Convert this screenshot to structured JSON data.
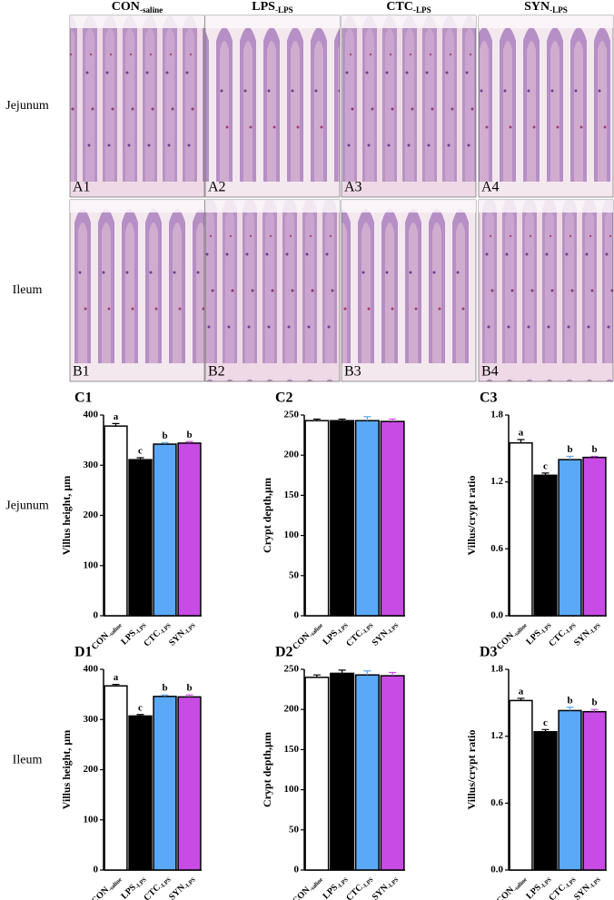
{
  "column_headers": [
    {
      "main": "CON",
      "sub": "-saline"
    },
    {
      "main": "LPS",
      "sub": "-LPS"
    },
    {
      "main": "CTC",
      "sub": "-LPS"
    },
    {
      "main": "SYN",
      "sub": "-LPS"
    }
  ],
  "row_labels": [
    "Jejunum",
    "Ileum"
  ],
  "panels": [
    [
      "A1",
      "A2",
      "A3",
      "A4"
    ],
    [
      "B1",
      "B2",
      "B3",
      "B4"
    ]
  ],
  "chart_row_labels": [
    "Jejunum",
    "Ileum"
  ],
  "chart_data": [
    {
      "type": "bar",
      "panel": "C1",
      "ylabel": "Villus height, µm",
      "categories": [
        "CON",
        "LPS",
        "CTC",
        "SYN"
      ],
      "category_subscripts": [
        "-saline",
        "-LPS",
        "-LPS",
        "-LPS"
      ],
      "values": [
        378,
        311,
        342,
        344
      ],
      "errors": [
        5,
        4,
        3,
        3
      ],
      "significance_letters": [
        "a",
        "c",
        "b",
        "b"
      ],
      "colors": [
        "#ffffff",
        "#000000",
        "#5aa9f8",
        "#c94be6"
      ],
      "edgecolor": "#000000",
      "ylim": [
        0,
        400
      ],
      "yticks": [
        0,
        100,
        200,
        300,
        400
      ]
    },
    {
      "type": "bar",
      "panel": "C2",
      "ylabel": "Crypt depth,µm",
      "categories": [
        "CON",
        "LPS",
        "CTC",
        "SYN"
      ],
      "category_subscripts": [
        "-saline",
        "-LPS",
        "-LPS",
        "-LPS"
      ],
      "values": [
        243,
        243,
        243,
        242
      ],
      "errors": [
        2,
        2,
        5,
        3
      ],
      "colors": [
        "#ffffff",
        "#000000",
        "#5aa9f8",
        "#c94be6"
      ],
      "edgecolor": "#000000",
      "ylim": [
        0,
        250
      ],
      "yticks": [
        0,
        50,
        100,
        150,
        200,
        250
      ]
    },
    {
      "type": "bar",
      "panel": "C3",
      "ylabel": "Villus/crypt ratio",
      "categories": [
        "CON",
        "LPS",
        "CTC",
        "SYN"
      ],
      "category_subscripts": [
        "-saline",
        "-LPS",
        "-LPS",
        "-LPS"
      ],
      "values": [
        1.55,
        1.26,
        1.4,
        1.42
      ],
      "errors": [
        0.03,
        0.02,
        0.03,
        0.01
      ],
      "significance_letters": [
        "a",
        "c",
        "b",
        "b"
      ],
      "colors": [
        "#ffffff",
        "#000000",
        "#5aa9f8",
        "#c94be6"
      ],
      "edgecolor": "#000000",
      "ylim": [
        0,
        1.8
      ],
      "yticks": [
        {
          "value": 0,
          "label": "0.0"
        },
        0.6,
        1.2,
        1.8
      ]
    },
    {
      "type": "bar",
      "panel": "D1",
      "ylabel": "Villus height, µm",
      "categories": [
        "CON",
        "LPS",
        "CTC",
        "SYN"
      ],
      "category_subscripts": [
        "-saline",
        "-LPS",
        "-LPS",
        "-LPS"
      ],
      "values": [
        367,
        307,
        346,
        345
      ],
      "errors": [
        3,
        3,
        3,
        4
      ],
      "significance_letters": [
        "a",
        "c",
        "b",
        "b"
      ],
      "colors": [
        "#ffffff",
        "#000000",
        "#5aa9f8",
        "#c94be6"
      ],
      "edgecolor": "#000000",
      "ylim": [
        0,
        400
      ],
      "yticks": [
        0,
        100,
        200,
        300,
        400
      ]
    },
    {
      "type": "bar",
      "panel": "D2",
      "ylabel": "Crypt depth,µm",
      "categories": [
        "CON",
        "LPS",
        "CTC",
        "SYN"
      ],
      "category_subscripts": [
        "-saline",
        "-LPS",
        "-LPS",
        "-LPS"
      ],
      "values": [
        240,
        245,
        243,
        242
      ],
      "errors": [
        3,
        4,
        5,
        4
      ],
      "colors": [
        "#ffffff",
        "#000000",
        "#5aa9f8",
        "#c94be6"
      ],
      "edgecolor": "#000000",
      "ylim": [
        0,
        250
      ],
      "yticks": [
        0,
        50,
        100,
        150,
        200,
        250
      ]
    },
    {
      "type": "bar",
      "panel": "D3",
      "ylabel": "Villus/crypt ratio",
      "categories": [
        "CON",
        "LPS",
        "CTC",
        "SYN"
      ],
      "category_subscripts": [
        "-saline",
        "-LPS",
        "-LPS",
        "-LPS"
      ],
      "values": [
        1.52,
        1.24,
        1.43,
        1.42
      ],
      "errors": [
        0.02,
        0.02,
        0.03,
        0.02
      ],
      "significance_letters": [
        "a",
        "c",
        "b",
        "b"
      ],
      "colors": [
        "#ffffff",
        "#000000",
        "#5aa9f8",
        "#c94be6"
      ],
      "edgecolor": "#000000",
      "ylim": [
        0,
        1.8
      ],
      "yticks": [
        {
          "value": 0,
          "label": "0.0"
        },
        0.6,
        1.2,
        1.8
      ]
    }
  ]
}
